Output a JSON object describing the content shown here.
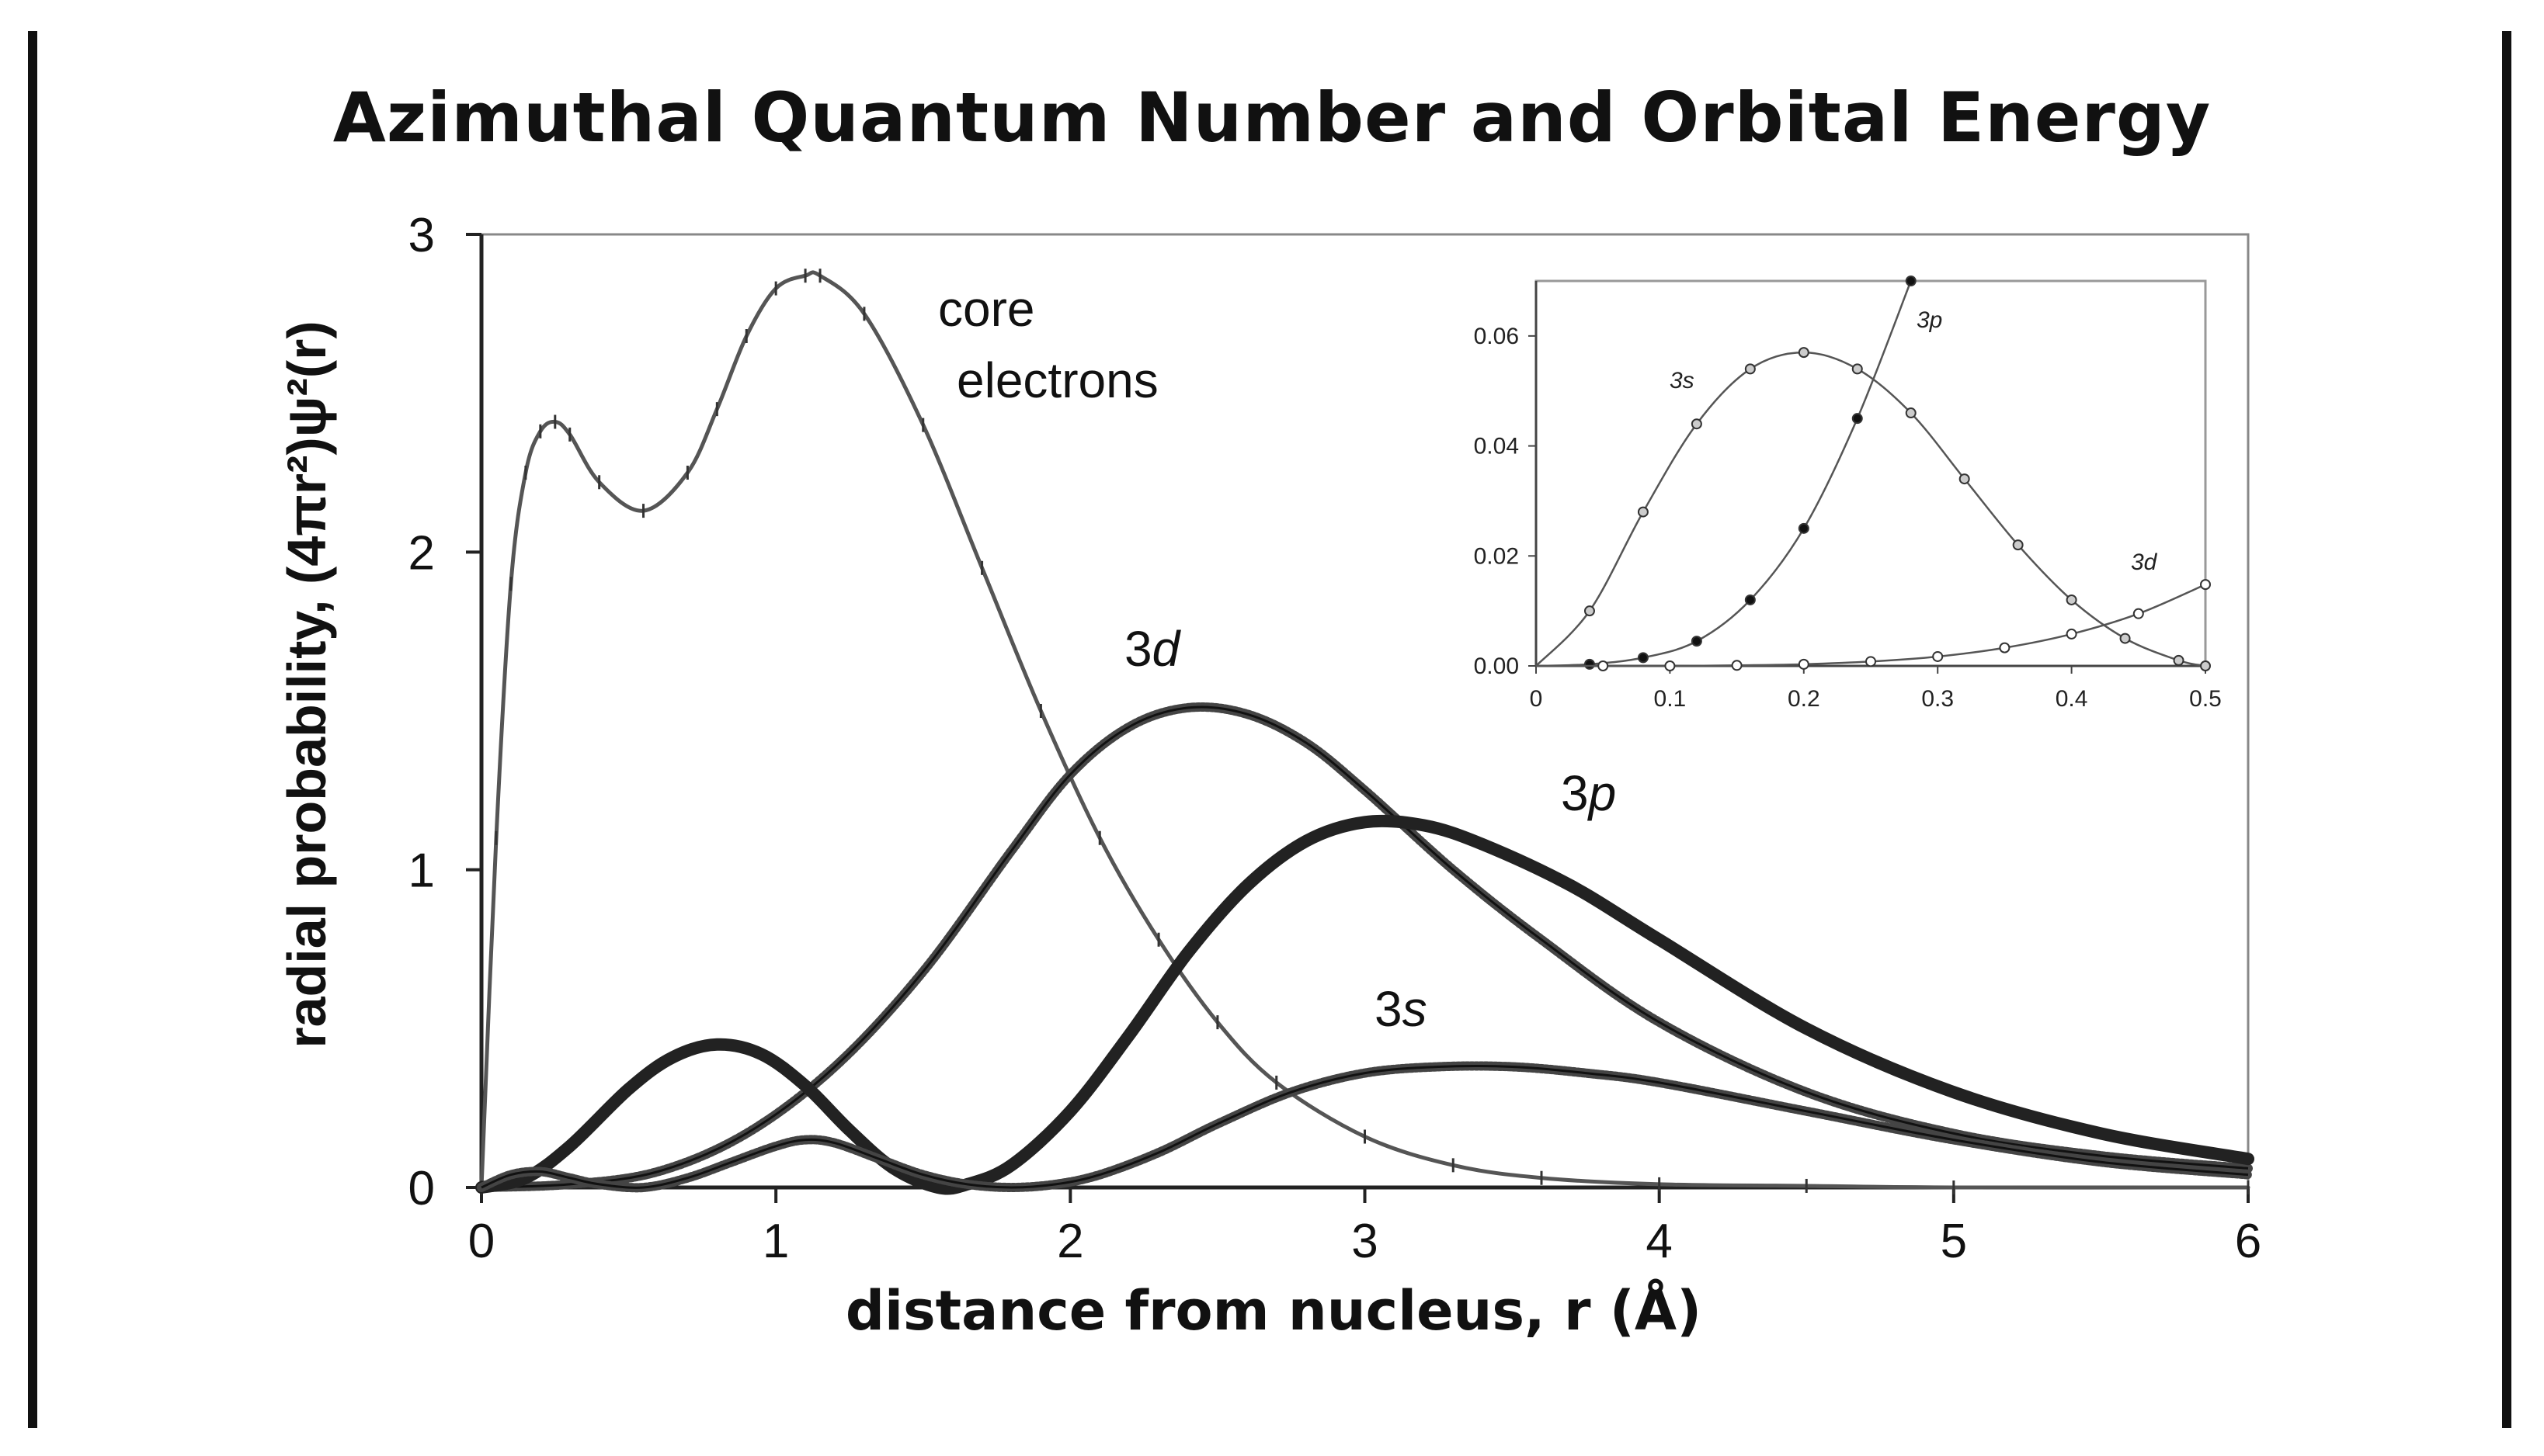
{
  "title": "Azimuthal Quantum Number and Orbital Energy",
  "chart_data": [
    {
      "type": "line",
      "xlabel": "distance from nucleus, r (Å)",
      "ylabel": "radial probability, (4πr²)ψ²(r)",
      "xlim": [
        0,
        6
      ],
      "ylim": [
        0,
        3
      ],
      "x_ticks": [
        "0",
        "1",
        "2",
        "3",
        "4",
        "5",
        "6"
      ],
      "y_ticks": [
        "0",
        "1",
        "2",
        "3"
      ],
      "grid": false,
      "series": [
        {
          "name": "core electrons",
          "x": [
            0,
            0.05,
            0.1,
            0.15,
            0.2,
            0.25,
            0.3,
            0.4,
            0.55,
            0.7,
            0.8,
            0.9,
            1.0,
            1.1,
            1.15,
            1.3,
            1.5,
            1.7,
            1.9,
            2.1,
            2.3,
            2.5,
            2.7,
            3.0,
            3.3,
            3.6,
            4.0,
            4.5,
            5.0,
            6.0
          ],
          "y": [
            0,
            1.1,
            1.9,
            2.25,
            2.38,
            2.41,
            2.37,
            2.22,
            2.13,
            2.25,
            2.45,
            2.68,
            2.83,
            2.87,
            2.87,
            2.75,
            2.4,
            1.95,
            1.5,
            1.1,
            0.78,
            0.52,
            0.33,
            0.16,
            0.07,
            0.03,
            0.01,
            0.005,
            0,
            0
          ]
        },
        {
          "name": "3d",
          "x": [
            0,
            0.3,
            0.6,
            0.9,
            1.2,
            1.5,
            1.8,
            2.0,
            2.2,
            2.4,
            2.6,
            2.8,
            3.0,
            3.3,
            3.6,
            4.0,
            4.5,
            5.0,
            5.5,
            6.0
          ],
          "y": [
            0,
            0.01,
            0.05,
            0.17,
            0.38,
            0.68,
            1.06,
            1.3,
            1.45,
            1.51,
            1.49,
            1.4,
            1.25,
            1.0,
            0.78,
            0.52,
            0.3,
            0.17,
            0.1,
            0.06
          ]
        },
        {
          "name": "3p",
          "x": [
            0,
            0.15,
            0.3,
            0.5,
            0.65,
            0.8,
            0.95,
            1.1,
            1.25,
            1.4,
            1.55,
            1.65,
            1.8,
            2.0,
            2.2,
            2.4,
            2.6,
            2.8,
            3.0,
            3.2,
            3.4,
            3.7,
            4.0,
            4.5,
            5.0,
            5.5,
            6.0
          ],
          "y": [
            0,
            0.03,
            0.13,
            0.31,
            0.41,
            0.45,
            0.42,
            0.32,
            0.18,
            0.06,
            0.0,
            0.01,
            0.07,
            0.24,
            0.48,
            0.74,
            0.95,
            1.09,
            1.15,
            1.14,
            1.08,
            0.95,
            0.78,
            0.5,
            0.3,
            0.17,
            0.09
          ]
        },
        {
          "name": "3s",
          "x": [
            0,
            0.1,
            0.2,
            0.3,
            0.4,
            0.55,
            0.7,
            0.85,
            1.0,
            1.1,
            1.2,
            1.35,
            1.5,
            1.65,
            1.8,
            1.95,
            2.1,
            2.3,
            2.5,
            2.75,
            3.0,
            3.25,
            3.5,
            3.75,
            4.0,
            4.5,
            5.0,
            5.5,
            6.0
          ],
          "y": [
            0,
            0.04,
            0.05,
            0.03,
            0.01,
            0.0,
            0.03,
            0.08,
            0.13,
            0.15,
            0.14,
            0.09,
            0.04,
            0.01,
            0.0,
            0.01,
            0.04,
            0.11,
            0.2,
            0.3,
            0.36,
            0.38,
            0.38,
            0.36,
            0.33,
            0.24,
            0.15,
            0.08,
            0.04
          ]
        }
      ],
      "annotations": [
        {
          "series": "core electrons",
          "text": [
            "core",
            "electrons"
          ]
        },
        {
          "series": "3d",
          "text": "3d"
        },
        {
          "series": "3p",
          "text": "3p"
        },
        {
          "series": "3s",
          "text": "3s"
        }
      ]
    },
    {
      "type": "line",
      "role": "inset",
      "xlim": [
        0,
        0.5
      ],
      "ylim": [
        0,
        0.07
      ],
      "x_ticks": [
        "0",
        "0.1",
        "0.2",
        "0.3",
        "0.4",
        "0.5"
      ],
      "y_ticks": [
        "0.00",
        "0.02",
        "0.04",
        "0.06"
      ],
      "series": [
        {
          "name": "3s",
          "x": [
            0,
            0.04,
            0.08,
            0.12,
            0.16,
            0.2,
            0.24,
            0.28,
            0.32,
            0.36,
            0.4,
            0.44,
            0.48,
            0.5
          ],
          "y": [
            0,
            0.01,
            0.028,
            0.044,
            0.054,
            0.057,
            0.054,
            0.046,
            0.034,
            0.022,
            0.012,
            0.005,
            0.001,
            0
          ]
        },
        {
          "name": "3p",
          "x": [
            0,
            0.04,
            0.08,
            0.12,
            0.16,
            0.2,
            0.24,
            0.28
          ],
          "y": [
            0,
            0.0003,
            0.0015,
            0.0045,
            0.012,
            0.025,
            0.045,
            0.07
          ]
        },
        {
          "name": "3d",
          "x": [
            0,
            0.05,
            0.1,
            0.15,
            0.2,
            0.25,
            0.3,
            0.35,
            0.4,
            0.45,
            0.5
          ],
          "y": [
            0,
            0,
            0,
            0.0001,
            0.0003,
            0.0008,
            0.0017,
            0.0033,
            0.0058,
            0.0095,
            0.0148
          ]
        }
      ],
      "annotations": [
        {
          "series": "3s",
          "text": "3s"
        },
        {
          "series": "3p",
          "text": "3p"
        },
        {
          "series": "3d",
          "text": "3d"
        }
      ]
    }
  ]
}
